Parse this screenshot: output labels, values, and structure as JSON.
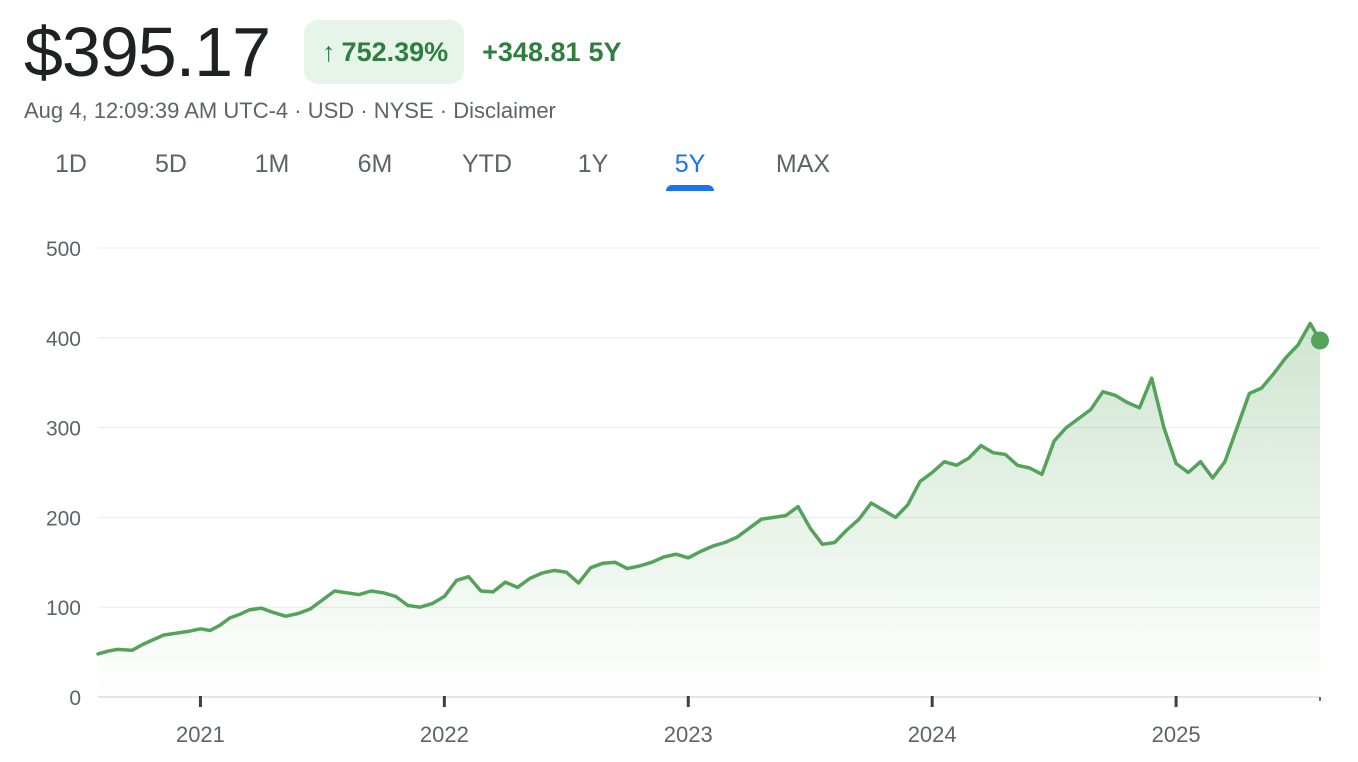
{
  "header": {
    "price": "$395.17",
    "percent_change": "752.39%",
    "change_value": "+348.81",
    "change_period": "5Y",
    "arrow_icon": "arrow-up-icon"
  },
  "meta": {
    "timestamp": "Aug 4, 12:09:39 AM UTC-4",
    "currency": "USD",
    "exchange": "NYSE",
    "disclaimer": "Disclaimer",
    "separator": " · "
  },
  "tabs": [
    {
      "label": "1D",
      "active": false
    },
    {
      "label": "5D",
      "active": false
    },
    {
      "label": "1M",
      "active": false
    },
    {
      "label": "6M",
      "active": false
    },
    {
      "label": "YTD",
      "active": false
    },
    {
      "label": "1Y",
      "active": false
    },
    {
      "label": "5Y",
      "active": true
    },
    {
      "label": "MAX",
      "active": false
    }
  ],
  "colors": {
    "line": "#55a35b",
    "area_top": "#55a35b",
    "grid": "#ebebeb",
    "active_tab": "#1a73e8",
    "positive": "#2f7d3f"
  },
  "chart_data": {
    "type": "area",
    "title": "",
    "xlabel": "",
    "ylabel": "",
    "ylim": [
      0,
      500
    ],
    "yticks": [
      0,
      100,
      200,
      300,
      400,
      500
    ],
    "xlim": [
      2020.58,
      2025.59
    ],
    "xticks": [
      {
        "label": "2021",
        "value": 2021
      },
      {
        "label": "2022",
        "value": 2022
      },
      {
        "label": "2023",
        "value": 2023
      },
      {
        "label": "2024",
        "value": 2024
      },
      {
        "label": "2025",
        "value": 2025
      }
    ],
    "grid": true,
    "series": [
      {
        "x": [
          2020.58,
          2020.62,
          2020.66,
          2020.72,
          2020.76,
          2020.8,
          2020.85,
          2020.9,
          2020.95,
          2021.0,
          2021.04,
          2021.08,
          2021.12,
          2021.16,
          2021.2,
          2021.25,
          2021.3,
          2021.35,
          2021.4,
          2021.45,
          2021.5,
          2021.55,
          2021.6,
          2021.65,
          2021.7,
          2021.75,
          2021.8,
          2021.85,
          2021.9,
          2021.95,
          2022.0,
          2022.05,
          2022.1,
          2022.15,
          2022.2,
          2022.25,
          2022.3,
          2022.35,
          2022.4,
          2022.45,
          2022.5,
          2022.55,
          2022.6,
          2022.65,
          2022.7,
          2022.75,
          2022.8,
          2022.85,
          2022.9,
          2022.95,
          2023.0,
          2023.05,
          2023.1,
          2023.15,
          2023.2,
          2023.25,
          2023.3,
          2023.35,
          2023.4,
          2023.45,
          2023.5,
          2023.55,
          2023.6,
          2023.65,
          2023.7,
          2023.75,
          2023.8,
          2023.85,
          2023.9,
          2023.95,
          2024.0,
          2024.05,
          2024.1,
          2024.15,
          2024.2,
          2024.25,
          2024.3,
          2024.35,
          2024.4,
          2024.45,
          2024.5,
          2024.55,
          2024.6,
          2024.65,
          2024.7,
          2024.75,
          2024.8,
          2024.85,
          2024.9,
          2024.95,
          2025.0,
          2025.05,
          2025.1,
          2025.15,
          2025.2,
          2025.25,
          2025.3,
          2025.35,
          2025.4,
          2025.45,
          2025.5,
          2025.55,
          2025.59
        ],
        "y": [
          48,
          51,
          53,
          52,
          58,
          63,
          69,
          71,
          73,
          76,
          74,
          80,
          88,
          92,
          97,
          99,
          94,
          90,
          93,
          98,
          108,
          118,
          116,
          114,
          118,
          116,
          112,
          102,
          100,
          104,
          112,
          130,
          134,
          118,
          117,
          128,
          122,
          132,
          138,
          141,
          139,
          127,
          144,
          149,
          150,
          143,
          146,
          150,
          156,
          159,
          155,
          162,
          168,
          172,
          178,
          188,
          198,
          200,
          202,
          212,
          188,
          170,
          172,
          186,
          198,
          216,
          208,
          200,
          214,
          240,
          250,
          262,
          258,
          266,
          280,
          272,
          270,
          258,
          255,
          248,
          285,
          300,
          310,
          320,
          340,
          336,
          328,
          322,
          355,
          300,
          260,
          250,
          262,
          244,
          262,
          300,
          338,
          344,
          360,
          378,
          392,
          416,
          397
        ]
      }
    ],
    "last_point_marker": true
  }
}
